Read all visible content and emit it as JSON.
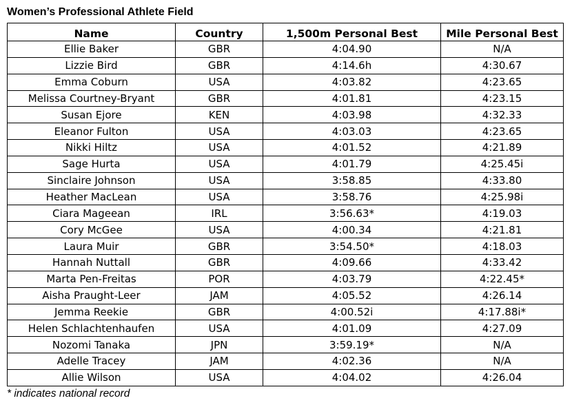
{
  "title": "Women’s Professional Athlete Field",
  "headers": {
    "name": "Name",
    "country": "Country",
    "pb_1500": "1,500m Personal Best",
    "pb_mile": "Mile Personal Best"
  },
  "rows": [
    {
      "name": "Ellie Baker",
      "country": "GBR",
      "pb_1500": "4:04.90",
      "pb_mile": "N/A"
    },
    {
      "name": "Lizzie Bird",
      "country": "GBR",
      "pb_1500": "4:14.6h",
      "pb_mile": "4:30.67"
    },
    {
      "name": "Emma Coburn",
      "country": "USA",
      "pb_1500": "4:03.82",
      "pb_mile": "4:23.65"
    },
    {
      "name": "Melissa Courtney-Bryant",
      "country": "GBR",
      "pb_1500": "4:01.81",
      "pb_mile": "4:23.15"
    },
    {
      "name": "Susan Ejore",
      "country": "KEN",
      "pb_1500": "4:03.98",
      "pb_mile": "4:32.33"
    },
    {
      "name": "Eleanor Fulton",
      "country": "USA",
      "pb_1500": "4:03.03",
      "pb_mile": "4:23.65"
    },
    {
      "name": "Nikki Hiltz",
      "country": "USA",
      "pb_1500": "4:01.52",
      "pb_mile": "4:21.89"
    },
    {
      "name": "Sage Hurta",
      "country": "USA",
      "pb_1500": "4:01.79",
      "pb_mile": "4:25.45i"
    },
    {
      "name": "Sinclaire Johnson",
      "country": "USA",
      "pb_1500": "3:58.85",
      "pb_mile": "4:33.80"
    },
    {
      "name": "Heather MacLean",
      "country": "USA",
      "pb_1500": "3:58.76",
      "pb_mile": "4:25.98i"
    },
    {
      "name": "Ciara Mageean",
      "country": "IRL",
      "pb_1500": "3:56.63*",
      "pb_mile": "4:19.03"
    },
    {
      "name": "Cory McGee",
      "country": "USA",
      "pb_1500": "4:00.34",
      "pb_mile": "4:21.81"
    },
    {
      "name": "Laura Muir",
      "country": "GBR",
      "pb_1500": "3:54.50*",
      "pb_mile": "4:18.03"
    },
    {
      "name": "Hannah Nuttall",
      "country": "GBR",
      "pb_1500": "4:09.66",
      "pb_mile": "4:33.42"
    },
    {
      "name": "Marta Pen-Freitas",
      "country": "POR",
      "pb_1500": "4:03.79",
      "pb_mile": "4:22.45*"
    },
    {
      "name": "Aisha Praught-Leer",
      "country": "JAM",
      "pb_1500": "4:05.52",
      "pb_mile": "4:26.14"
    },
    {
      "name": "Jemma Reekie",
      "country": "GBR",
      "pb_1500": "4:00.52i",
      "pb_mile": "4:17.88i*"
    },
    {
      "name": "Helen Schlachtenhaufen",
      "country": "USA",
      "pb_1500": "4:01.09",
      "pb_mile": "4:27.09"
    },
    {
      "name": "Nozomi Tanaka",
      "country": "JPN",
      "pb_1500": "3:59.19*",
      "pb_mile": "N/A"
    },
    {
      "name": "Adelle Tracey",
      "country": "JAM",
      "pb_1500": "4:02.36",
      "pb_mile": "N/A"
    },
    {
      "name": "Allie Wilson",
      "country": "USA",
      "pb_1500": "4:04.02",
      "pb_mile": "4:26.04"
    }
  ],
  "footnote": "* indicates national record"
}
